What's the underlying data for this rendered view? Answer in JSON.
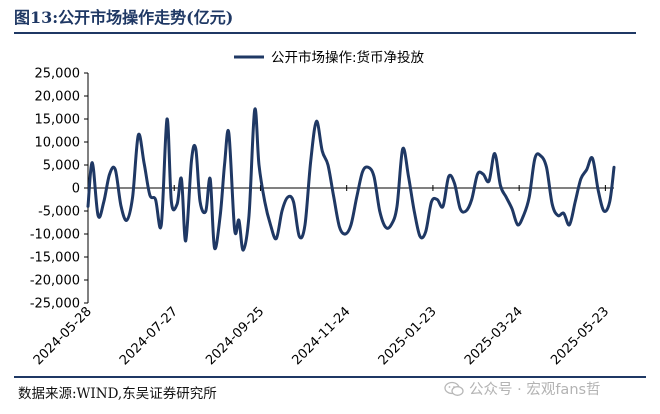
{
  "header": {
    "title": "图13:公开市场操作走势(亿元)"
  },
  "footer": {
    "source": "数据来源:WIND,东吴证券研究所",
    "watermark": "公众号 · 宏观fans哲"
  },
  "chart_data": {
    "type": "line",
    "title": "",
    "xlabel": "",
    "ylabel": "",
    "ylim": [
      -25000,
      25000
    ],
    "yticks": [
      25000,
      20000,
      15000,
      10000,
      5000,
      0,
      -5000,
      -10000,
      -15000,
      -20000,
      -25000
    ],
    "ytick_labels": [
      "25,000",
      "20,000",
      "15,000",
      "10,000",
      "5,000",
      "0",
      "-5,000",
      "-10,000",
      "-15,000",
      "-20,000",
      "-25,000"
    ],
    "xticks": [
      "2024-05-28",
      "2024-07-27",
      "2024-09-25",
      "2024-11-24",
      "2025-01-23",
      "2025-03-24",
      "2025-05-23"
    ],
    "legend_position": "top-center",
    "grid": false,
    "series": [
      {
        "name": "公开市场操作:货币净投放",
        "color": "#1f3864",
        "x": [
          "2024-05-28",
          "2024-05-31",
          "2024-06-04",
          "2024-06-08",
          "2024-06-12",
          "2024-06-16",
          "2024-06-20",
          "2024-06-24",
          "2024-06-28",
          "2024-07-02",
          "2024-07-06",
          "2024-07-10",
          "2024-07-14",
          "2024-07-18",
          "2024-07-22",
          "2024-07-25",
          "2024-07-29",
          "2024-08-01",
          "2024-08-04",
          "2024-08-08",
          "2024-08-11",
          "2024-08-14",
          "2024-08-18",
          "2024-08-21",
          "2024-08-24",
          "2024-08-28",
          "2024-08-31",
          "2024-09-03",
          "2024-09-07",
          "2024-09-10",
          "2024-09-13",
          "2024-09-17",
          "2024-09-21",
          "2024-09-24",
          "2024-09-28",
          "2024-10-02",
          "2024-10-06",
          "2024-10-10",
          "2024-10-14",
          "2024-10-18",
          "2024-10-22",
          "2024-10-26",
          "2024-10-30",
          "2024-11-03",
          "2024-11-07",
          "2024-11-11",
          "2024-11-15",
          "2024-11-19",
          "2024-11-23",
          "2024-11-27",
          "2024-12-01",
          "2024-12-05",
          "2024-12-09",
          "2024-12-13",
          "2024-12-17",
          "2024-12-21",
          "2024-12-25",
          "2024-12-29",
          "2025-01-02",
          "2025-01-06",
          "2025-01-10",
          "2025-01-14",
          "2025-01-18",
          "2025-01-22",
          "2025-01-26",
          "2025-01-30",
          "2025-02-03",
          "2025-02-07",
          "2025-02-11",
          "2025-02-15",
          "2025-02-19",
          "2025-02-23",
          "2025-02-27",
          "2025-03-03",
          "2025-03-07",
          "2025-03-11",
          "2025-03-15",
          "2025-03-19",
          "2025-03-23",
          "2025-03-27",
          "2025-03-31",
          "2025-04-04",
          "2025-04-08",
          "2025-04-12",
          "2025-04-16",
          "2025-04-20",
          "2025-04-24",
          "2025-04-28",
          "2025-05-02",
          "2025-05-06",
          "2025-05-10",
          "2025-05-14",
          "2025-05-18",
          "2025-05-22",
          "2025-05-26",
          "2025-05-29"
        ],
        "values": [
          -4000,
          5500,
          -6000,
          -3000,
          3000,
          4000,
          -4000,
          -7000,
          -2000,
          11500,
          5500,
          -1500,
          -2500,
          -8000,
          15000,
          -3000,
          -3500,
          2000,
          -11500,
          6000,
          8500,
          -3000,
          -5000,
          2000,
          -13000,
          -6000,
          5000,
          12000,
          -9000,
          -7000,
          -13500,
          -6000,
          17000,
          5000,
          -3000,
          -8000,
          -11000,
          -5000,
          -2000,
          -3000,
          -10500,
          -8000,
          6000,
          14500,
          8000,
          5000,
          -2000,
          -8500,
          -10000,
          -8000,
          -2000,
          3500,
          4500,
          2500,
          -5000,
          -8500,
          -8000,
          -4000,
          8500,
          2500,
          -5000,
          -10500,
          -9500,
          -3000,
          -2500,
          -4000,
          2500,
          1000,
          -4500,
          -5000,
          -2500,
          3000,
          3000,
          1500,
          7500,
          500,
          -2000,
          -4500,
          -8000,
          -6000,
          -2000,
          6500,
          7000,
          4500,
          -3500,
          -6000,
          -5500,
          -8000,
          -3000,
          2000,
          4000,
          6500,
          -500,
          -5000,
          -3000,
          4500
        ]
      }
    ]
  }
}
